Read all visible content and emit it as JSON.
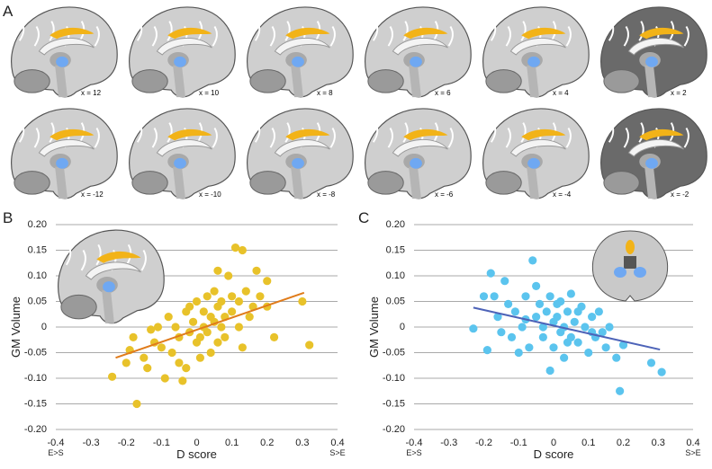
{
  "panel_a": {
    "label": "A",
    "slices": [
      "x = 12",
      "x = 10",
      "x = 8",
      "x = 6",
      "x = 4",
      "x = 2",
      "x = -12",
      "x = -10",
      "x = -8",
      "x = -6",
      "x = -4",
      "x = -2"
    ]
  },
  "chart_data": [
    {
      "type": "scatter",
      "panel": "B",
      "x_label": "D score",
      "y_label": "GM Volume",
      "x_left_label": "E>S",
      "x_right_label": "S>E",
      "xlim": [
        -0.4,
        0.4
      ],
      "xticks": [
        -0.4,
        -0.3,
        -0.2,
        -0.1,
        0,
        0.1,
        0.2,
        0.3,
        0.4
      ],
      "ylim": [
        -0.2,
        0.2
      ],
      "yticks": [
        {
          "value": 0.2,
          "label": "0.20"
        },
        0.15,
        {
          "value": 0.1,
          "label": "0.10"
        },
        0.05,
        0,
        -0.05,
        {
          "value": -0.1,
          "label": "-0.10"
        },
        -0.15,
        {
          "value": -0.2,
          "label": "-0.20"
        }
      ],
      "grid": true,
      "series": [
        {
          "color": "#e8c22a",
          "x": [
            -0.24,
            -0.17,
            -0.2,
            -0.19,
            -0.18,
            -0.15,
            -0.14,
            -0.12,
            -0.11,
            -0.1,
            -0.09,
            -0.08,
            -0.07,
            -0.06,
            -0.05,
            -0.05,
            -0.04,
            -0.03,
            -0.03,
            -0.02,
            -0.01,
            0,
            0,
            0.01,
            0.02,
            0.02,
            0.03,
            0.03,
            0.04,
            0.04,
            0.05,
            0.05,
            0.06,
            0.06,
            0.07,
            0.08,
            0.08,
            0.09,
            0.1,
            0.1,
            0.11,
            0.12,
            0.12,
            0.13,
            0.13,
            0.14,
            0.15,
            0.16,
            0.17,
            0.18,
            0.2,
            0.2,
            0.22,
            0.06,
            0.3,
            0.32,
            -0.13,
            0.01,
            -0.02,
            0.07
          ],
          "values": [
            -0.097,
            -0.15,
            -0.07,
            -0.045,
            -0.02,
            -0.06,
            -0.08,
            -0.03,
            0,
            -0.04,
            -0.1,
            0.02,
            -0.05,
            0,
            -0.02,
            -0.07,
            -0.105,
            -0.08,
            0.03,
            -0.01,
            0.01,
            -0.03,
            0.05,
            -0.02,
            0,
            0.03,
            -0.01,
            0.06,
            0.02,
            -0.05,
            0.01,
            0.07,
            -0.03,
            0.04,
            0,
            0.02,
            -0.02,
            0.1,
            0.06,
            0.03,
            0.155,
            0.05,
            0,
            0.15,
            -0.04,
            0.07,
            0.02,
            0.04,
            0.11,
            0.06,
            0.04,
            0.09,
            -0.02,
            0.11,
            0.05,
            -0.035,
            -0.005,
            -0.06,
            0.04,
            0.05
          ]
        },
        {
          "type": "line",
          "color": "#e07b1a",
          "x": [
            -0.23,
            0.305
          ],
          "values": [
            -0.06,
            0.067
          ]
        }
      ]
    },
    {
      "type": "scatter",
      "panel": "C",
      "x_label": "D score",
      "y_label": "GM Volume",
      "x_left_label": "E>S",
      "x_right_label": "S>E",
      "xlim": [
        -0.4,
        0.4
      ],
      "xticks": [
        -0.4,
        -0.3,
        -0.2,
        -0.1,
        0,
        0.1,
        0.2,
        0.3,
        0.4
      ],
      "ylim": [
        -0.2,
        0.2
      ],
      "yticks": [
        {
          "value": 0.2,
          "label": "0.20"
        },
        0.15,
        {
          "value": 0.1,
          "label": "0.10"
        },
        0.05,
        0,
        -0.05,
        {
          "value": -0.1,
          "label": "-0.10"
        },
        -0.15,
        {
          "value": -0.2,
          "label": "-0.20"
        }
      ],
      "grid": true,
      "series": [
        {
          "color": "#5bc4ee",
          "x": [
            -0.23,
            -0.19,
            -0.18,
            -0.17,
            -0.16,
            -0.15,
            -0.14,
            -0.13,
            -0.12,
            -0.11,
            -0.1,
            -0.09,
            -0.08,
            -0.07,
            -0.06,
            -0.05,
            -0.05,
            -0.04,
            -0.03,
            -0.03,
            -0.02,
            -0.01,
            -0.01,
            0,
            0,
            0.01,
            0.02,
            0.02,
            0.03,
            0.03,
            0.04,
            0.05,
            0.05,
            0.06,
            0.07,
            0.08,
            0.09,
            0.1,
            0.11,
            0.12,
            0.13,
            0.14,
            0.15,
            0.16,
            0.18,
            0.19,
            0.2,
            0.28,
            0.31,
            -0.2,
            0.04,
            -0.08,
            0.07,
            0.01,
            0.11
          ],
          "values": [
            -0.003,
            -0.045,
            0.105,
            0.06,
            0.02,
            -0.01,
            0.09,
            0.045,
            -0.02,
            0.03,
            -0.05,
            0,
            0.06,
            -0.04,
            0.13,
            0.02,
            0.08,
            0.045,
            0,
            -0.02,
            0.03,
            0.06,
            -0.085,
            0.01,
            -0.04,
            0.02,
            -0.01,
            0.05,
            0,
            -0.06,
            0.03,
            -0.02,
            0.065,
            0.01,
            -0.03,
            0.04,
            0,
            -0.05,
            0.02,
            -0.02,
            0.03,
            -0.01,
            -0.04,
            0,
            -0.06,
            -0.125,
            -0.035,
            -0.07,
            -0.088,
            0.06,
            -0.03,
            0.015,
            0.03,
            0.045,
            -0.01
          ]
        },
        {
          "type": "line",
          "color": "#4d63b8",
          "x": [
            -0.23,
            0.305
          ],
          "values": [
            0.038,
            -0.044
          ]
        }
      ]
    }
  ]
}
